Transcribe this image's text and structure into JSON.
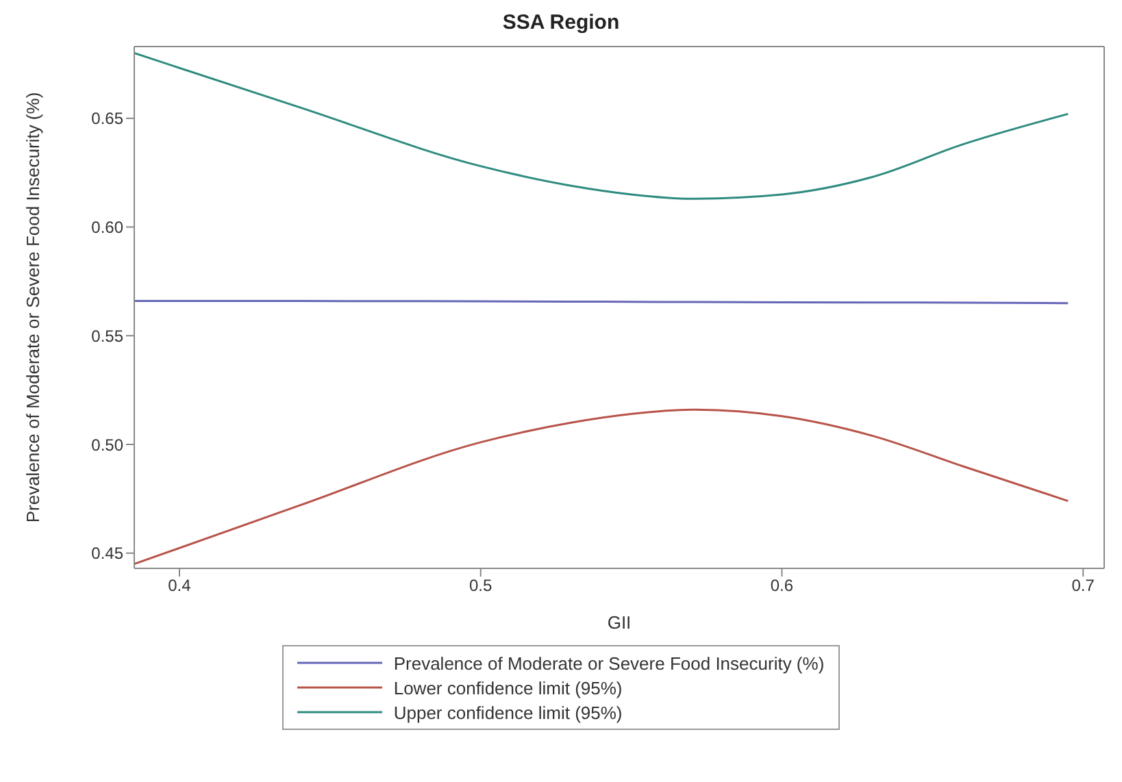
{
  "chart_data": {
    "type": "line",
    "title": "SSA Region",
    "xlabel": "GII",
    "ylabel": "Prevalence of Moderate or Severe Food Insecurity (%)",
    "x": [
      0.385,
      0.44,
      0.5,
      0.53,
      0.55,
      0.57,
      0.6,
      0.63,
      0.66,
      0.695
    ],
    "series": [
      {
        "name": "Prevalence of Moderate or Severe Food Insecurity (%)",
        "color": "#6666b8",
        "values": [
          0.566,
          0.566,
          0.5658,
          0.5657,
          0.5656,
          0.5655,
          0.5654,
          0.5653,
          0.5652,
          0.565
        ]
      },
      {
        "name": "Lower confidence limit (95%)",
        "color": "#b8544a",
        "values": [
          0.445,
          0.472,
          0.501,
          0.51,
          0.514,
          0.516,
          0.513,
          0.504,
          0.49,
          0.474
        ]
      },
      {
        "name": "Upper confidence limit (95%)",
        "color": "#2e8b80",
        "values": [
          0.68,
          0.655,
          0.628,
          0.619,
          0.615,
          0.613,
          0.615,
          0.623,
          0.638,
          0.652
        ]
      }
    ],
    "xlim": [
      0.385,
      0.707
    ],
    "ylim": [
      0.443,
      0.683
    ],
    "xticks": [
      0.4,
      0.5,
      0.6,
      0.7
    ],
    "yticks": [
      {
        "value": 0.45,
        "label": "0.45"
      },
      {
        "value": 0.5,
        "label": "0.50"
      },
      {
        "value": 0.55,
        "label": "0.55"
      },
      {
        "value": 0.6,
        "label": "0.60"
      },
      {
        "value": 0.65,
        "label": "0.65"
      }
    ],
    "legend": "bottom",
    "marker": "none",
    "line_style": "solid"
  }
}
